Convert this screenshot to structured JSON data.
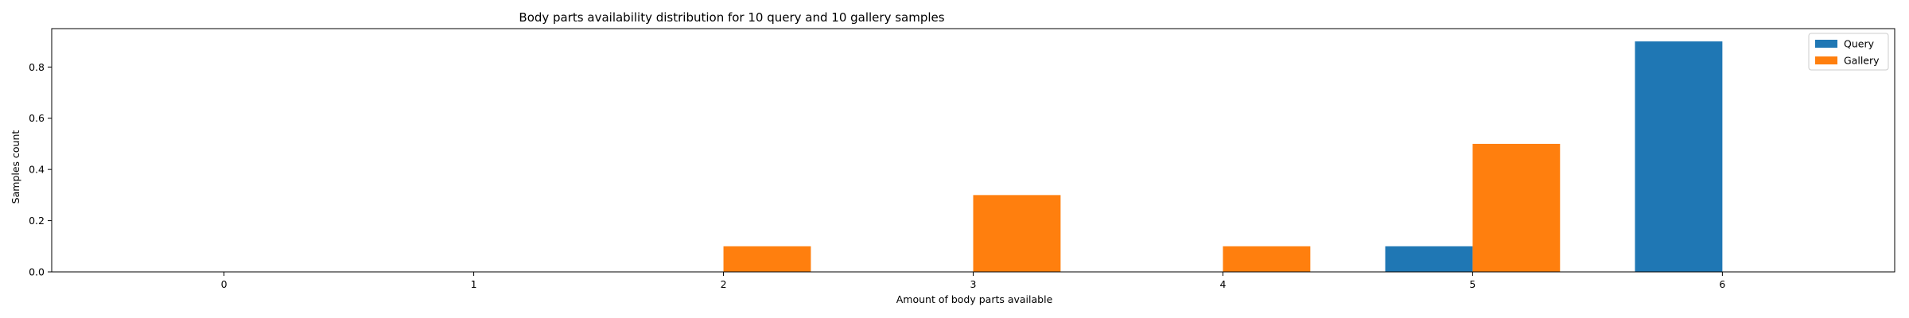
{
  "chart_data": {
    "type": "bar",
    "title": "Body parts availability distribution for 10 query and 10 gallery samples",
    "xlabel": "Amount of body parts available",
    "ylabel": "Samples count",
    "categories": [
      "0",
      "1",
      "2",
      "3",
      "4",
      "5",
      "6"
    ],
    "series": [
      {
        "name": "Query",
        "values": [
          0,
          0,
          0,
          0,
          0,
          0.1,
          0.9
        ],
        "color": "#1f77b4"
      },
      {
        "name": "Gallery",
        "values": [
          0,
          0,
          0.1,
          0.3,
          0.1,
          0.5,
          0
        ],
        "color": "#ff7f0e"
      }
    ],
    "ylim": [
      0,
      0.95
    ],
    "xlim": [
      -0.69,
      6.69
    ],
    "yticks": [
      0.0,
      0.2,
      0.4,
      0.6,
      0.8
    ],
    "ytick_labels": [
      "0.0",
      "0.2",
      "0.4",
      "0.6",
      "0.8"
    ],
    "grid": false,
    "legend_position": "top-right"
  }
}
